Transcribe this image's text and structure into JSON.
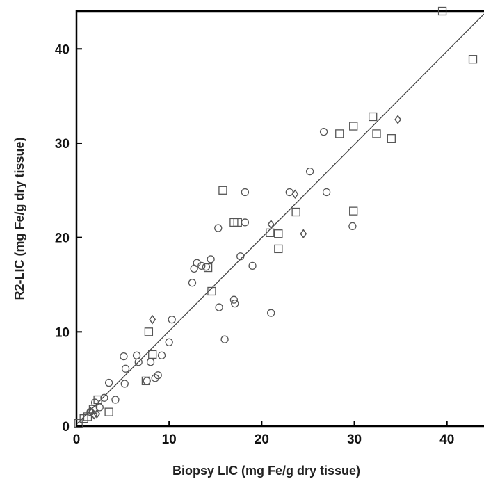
{
  "chart_data": {
    "type": "scatter",
    "title": "",
    "xlabel": "Biopsy LIC (mg Fe/g dry tissue)",
    "ylabel": "R2-LIC (mg Fe/g dry tissue)",
    "xlim": [
      0,
      44
    ],
    "ylim": [
      0,
      44
    ],
    "xticks": [
      0,
      10,
      20,
      30,
      40
    ],
    "yticks": [
      0,
      10,
      20,
      30,
      40
    ],
    "grid": false,
    "legend": "none",
    "colors": {
      "marker": "#555555",
      "line": "#444444",
      "axis": "#000000"
    },
    "series": [
      {
        "marker": "circle",
        "points": [
          [
            1.5,
            1.5
          ],
          [
            2,
            2.5
          ],
          [
            2.5,
            2.0
          ],
          [
            3,
            3.0
          ],
          [
            3.5,
            4.6
          ],
          [
            4.2,
            2.8
          ],
          [
            5.1,
            7.4
          ],
          [
            5.2,
            4.5
          ],
          [
            5.3,
            6.1
          ],
          [
            6.5,
            7.5
          ],
          [
            6.7,
            6.8
          ],
          [
            7.6,
            4.8
          ],
          [
            8,
            6.8
          ],
          [
            8.5,
            5.1
          ],
          [
            8.8,
            5.4
          ],
          [
            9.2,
            7.5
          ],
          [
            10,
            8.9
          ],
          [
            10.3,
            11.3
          ],
          [
            12.5,
            15.2
          ],
          [
            12.7,
            16.7
          ],
          [
            13,
            17.3
          ],
          [
            13.5,
            17.0
          ],
          [
            14,
            16.9
          ],
          [
            14.5,
            17.7
          ],
          [
            15.3,
            21.0
          ],
          [
            15.4,
            12.6
          ],
          [
            16,
            9.2
          ],
          [
            17,
            13.4
          ],
          [
            17.1,
            13.0
          ],
          [
            17.7,
            18.0
          ],
          [
            18.2,
            21.6
          ],
          [
            18.2,
            24.8
          ],
          [
            19,
            17.0
          ],
          [
            21,
            12.0
          ],
          [
            23,
            24.8
          ],
          [
            25.2,
            27.0
          ],
          [
            26.7,
            31.2
          ],
          [
            27,
            24.8
          ],
          [
            29.8,
            21.2
          ]
        ]
      },
      {
        "marker": "square",
        "points": [
          [
            0.2,
            0.3
          ],
          [
            0.8,
            0.8
          ],
          [
            1.2,
            1.0
          ],
          [
            1.8,
            1.8
          ],
          [
            2.3,
            2.8
          ],
          [
            3.5,
            1.5
          ],
          [
            7.5,
            4.8
          ],
          [
            7.8,
            10.0
          ],
          [
            8.2,
            7.6
          ],
          [
            14.2,
            16.8
          ],
          [
            14.6,
            14.3
          ],
          [
            15.8,
            25.0
          ],
          [
            17,
            21.6
          ],
          [
            17.4,
            21.6
          ],
          [
            20.9,
            20.5
          ],
          [
            21.8,
            18.8
          ],
          [
            21.8,
            20.4
          ],
          [
            23.7,
            22.7
          ],
          [
            28.4,
            31.0
          ],
          [
            29.9,
            31.8
          ],
          [
            29.9,
            22.8
          ],
          [
            32,
            32.8
          ],
          [
            32.4,
            31.0
          ],
          [
            34,
            30.5
          ],
          [
            39.5,
            44.0
          ],
          [
            42.8,
            38.9
          ]
        ]
      },
      {
        "marker": "diamond",
        "points": [
          [
            1.5,
            1.6
          ],
          [
            1.9,
            1.2
          ],
          [
            2.2,
            1.3
          ],
          [
            8.2,
            11.3
          ],
          [
            21,
            21.4
          ],
          [
            23.6,
            24.6
          ],
          [
            24.5,
            20.4
          ],
          [
            34.7,
            32.5
          ]
        ]
      }
    ],
    "fit_line": {
      "x": [
        0,
        44
      ],
      "y": [
        0.2,
        43.7
      ]
    }
  }
}
